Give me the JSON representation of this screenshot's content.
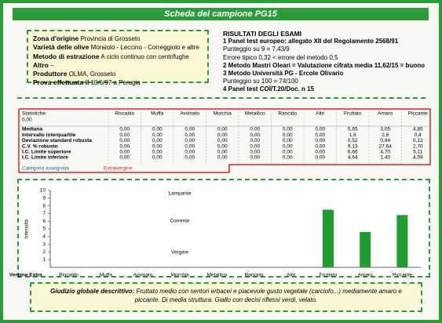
{
  "header": {
    "title": "Scheda del campione PG15"
  },
  "origin": {
    "lines": [
      {
        "label": "Zona d'origine",
        "text": "Provincia di Grosseto"
      },
      {
        "label": "Varietà delle olive",
        "text": "Moraiolo - Leccino - Correggiolo e altre"
      },
      {
        "label": "Metodo di estrazione",
        "text": "A ciclo continuo con centrifughe"
      },
      {
        "label": "Altro",
        "text": "–"
      },
      {
        "label": "Produttore",
        "text": "OLMA, Grosseto"
      },
      {
        "label": "Prova effettuata il",
        "text": "10/6/97 a Perugia"
      }
    ]
  },
  "results": {
    "title": "RISULTATI DEGLI ESAMI",
    "lines": [
      "1 Panel test europeo: allegato XII del Regolamento 2568/91",
      "Punteggio su 9 = 7,43/9",
      "Errore tipico 0,32 < errore del metodo 0,5",
      "2 Metodo Mastri Oleari = Valutazione cifrata media 11,62/15 = buono",
      "3 Metodo Università PG - Ercole Olivario",
      "Punteggio su 100 = 74/100",
      "4 Panel test COI/T.20/Doc. n 15"
    ]
  },
  "table": {
    "corner": "Statistiche",
    "corner_value": "0,00",
    "columns": [
      "Riscaldo",
      "Muffa",
      "Avvinato",
      "Morchia",
      "Metallico",
      "Rancido",
      "Altri",
      "Fruttato",
      "Amaro",
      "Piccante"
    ],
    "rows": [
      [
        "Mediana",
        "0,00",
        "0,00",
        "0,00",
        "0,00",
        "0,00",
        "0,00",
        "0,00",
        "5,65",
        "3,05",
        "4,85"
      ],
      [
        "Intervallo interquartile",
        "0,00",
        "0,00",
        "0,00",
        "0,00",
        "0,00",
        "0,00",
        "0,00",
        "1,6",
        "2,6",
        "0,4"
      ],
      [
        "Deviazione standard robusta",
        "0,00",
        "0,00",
        "0,00",
        "0,00",
        "0,00",
        "0,00",
        "0,00",
        "0,52",
        "0,84",
        "0,13"
      ],
      [
        "C.V. % robusto",
        "0,00",
        "0,00",
        "0,00",
        "0,00",
        "0,00",
        "0,00",
        "0,00",
        "9,13",
        "27,64",
        "2,70"
      ],
      [
        "I.C. Limite superiore",
        "0,00",
        "0,00",
        "0,00",
        "0,00",
        "0,00",
        "0,00",
        "0,00",
        "6,66",
        "4,70",
        "5,11"
      ],
      [
        "I.C. Limite inferiore",
        "0,00",
        "0,00",
        "0,00",
        "0,00",
        "0,00",
        "0,00",
        "0,00",
        "4,64",
        "1,40",
        "4,59"
      ]
    ],
    "category_label": "Categoria assegnata",
    "category": "Extravergine"
  },
  "chart_data": {
    "type": "bar",
    "y_label": "Intensità",
    "base_label": "Vergine Extra",
    "categories": [
      "Riscaldo",
      "Muffa",
      "Avvinato",
      "Morchia",
      "Metallico",
      "Rancido",
      "Altri",
      "Fruttato",
      "Amaro",
      "Piccante"
    ],
    "values": [
      0,
      0,
      0,
      0,
      0,
      0,
      0,
      7.5,
      4.6,
      6.8
    ],
    "color": "#1f9e2f",
    "ylim": [
      0,
      10
    ],
    "yticks": [
      1,
      2,
      3,
      4,
      5,
      6,
      7,
      8,
      9,
      10
    ],
    "annotations": [
      "Lampante",
      "Corrente",
      "Vergine"
    ]
  },
  "judgment": {
    "label": "Giudizio globale descrittivo:",
    "text": "Fruttato medio con sentori erbacei e piacevole gusto vegetale (carciofo...) mediamente amaro e piccante. Di media struttura. Giallo con decisi riflessi verdi, velato."
  }
}
